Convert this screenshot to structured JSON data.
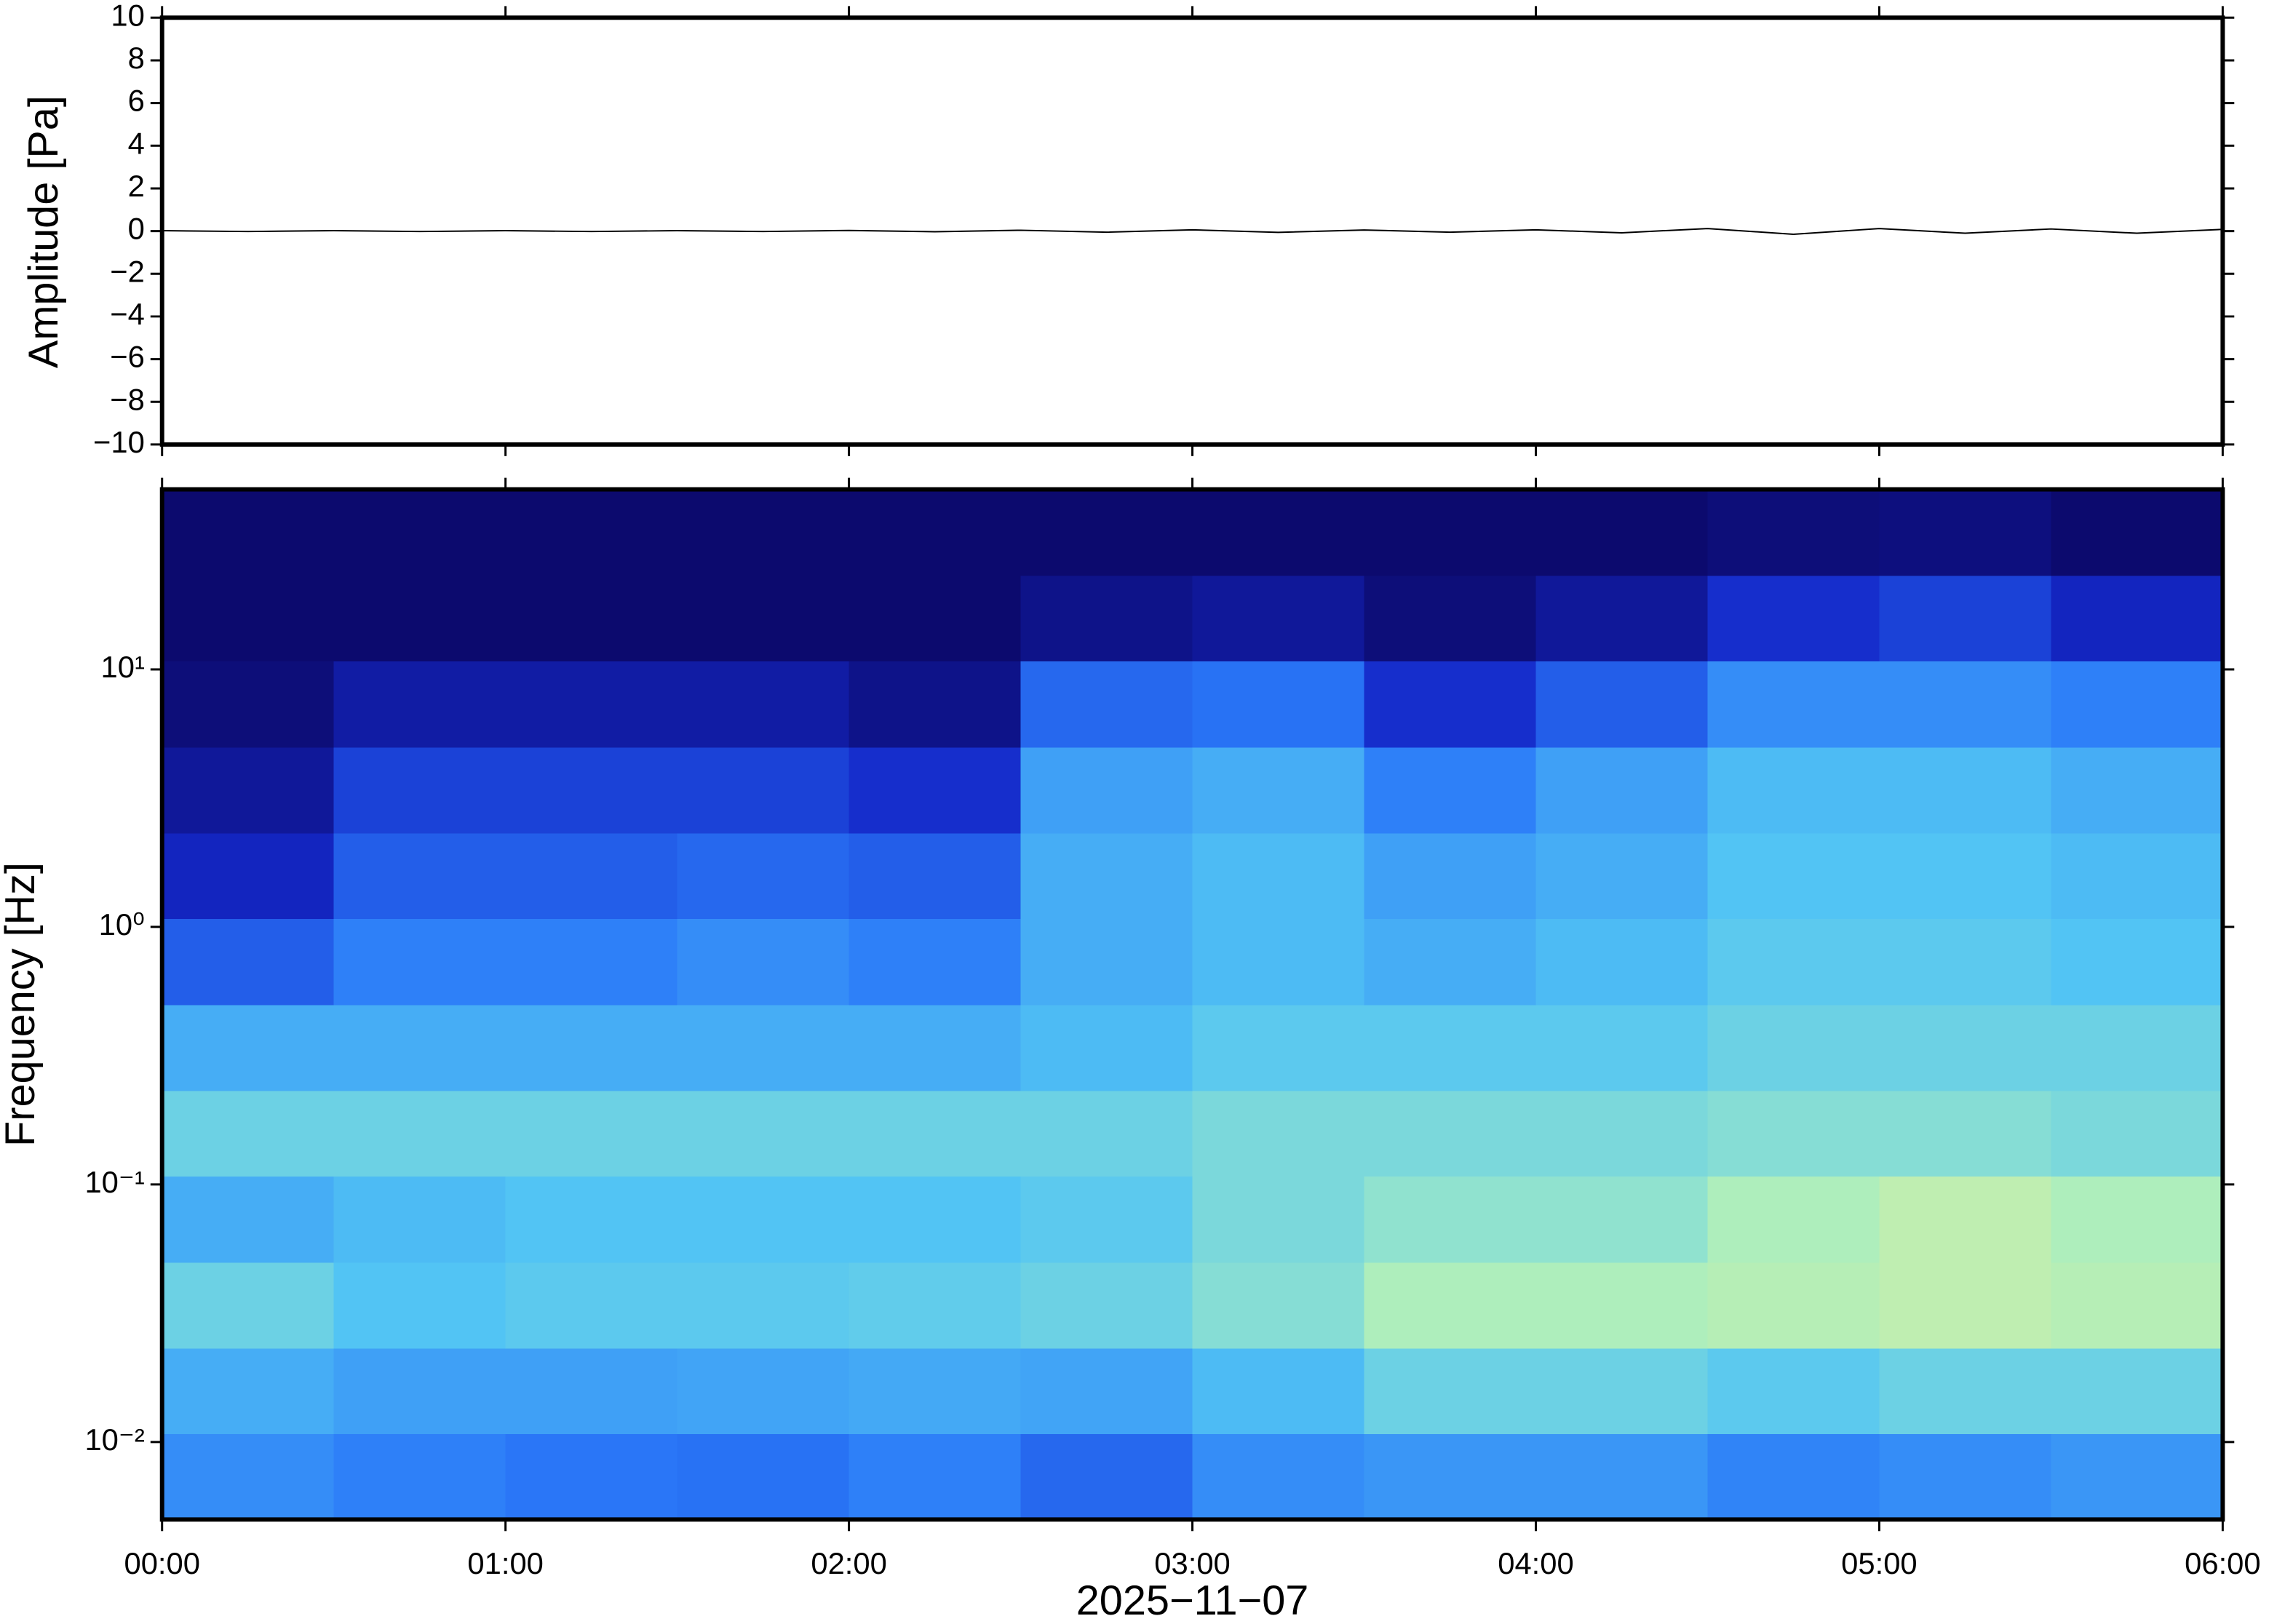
{
  "chart_data": [
    {
      "type": "line",
      "ylabel": "Amplitude [Pa]",
      "xlim": [
        0,
        6
      ],
      "ylim": [
        -10,
        10
      ],
      "yticks": [
        {
          "value": -10,
          "label": "−10"
        },
        {
          "value": -8,
          "label": "−8"
        },
        {
          "value": -6,
          "label": "−6"
        },
        {
          "value": -4,
          "label": "−4"
        },
        {
          "value": -2,
          "label": "−2"
        },
        0,
        2,
        4,
        6,
        8,
        10
      ],
      "color": "#000000",
      "x": [
        0,
        0.25,
        0.5,
        0.75,
        1,
        1.25,
        1.5,
        1.75,
        2,
        2.25,
        2.5,
        2.75,
        3,
        3.25,
        3.5,
        3.75,
        4,
        4.25,
        4.5,
        4.75,
        5,
        5.25,
        5.5,
        5.75,
        6
      ],
      "values": [
        0.02,
        -0.02,
        0.02,
        -0.02,
        0.02,
        -0.02,
        0.02,
        -0.02,
        0.03,
        -0.03,
        0.04,
        -0.05,
        0.06,
        -0.06,
        0.05,
        -0.05,
        0.06,
        -0.08,
        0.12,
        -0.15,
        0.12,
        -0.1,
        0.1,
        -0.1,
        0.08
      ]
    },
    {
      "type": "heatmap",
      "ylabel": "Frequency [Hz]",
      "xlabel": "2025−11−07",
      "xlim": [
        0,
        6
      ],
      "xticks": [
        {
          "value": 0,
          "label": "00:00"
        },
        {
          "value": 1,
          "label": "01:00"
        },
        {
          "value": 2,
          "label": "02:00"
        },
        {
          "value": 3,
          "label": "03:00"
        },
        {
          "value": 4,
          "label": "04:00"
        },
        {
          "value": 5,
          "label": "05:00"
        },
        {
          "value": 6,
          "label": "06:00"
        }
      ],
      "ylim": [
        0.005,
        50
      ],
      "log_y": true,
      "yticks": [
        {
          "value": 0.01,
          "label": "10⁻²"
        },
        {
          "value": 0.1,
          "label": "10⁻¹"
        },
        {
          "value": 1,
          "label": "10⁰"
        },
        {
          "value": 10,
          "label": "10¹"
        }
      ],
      "x_bins": [
        0,
        0.5,
        1,
        1.5,
        2,
        2.5,
        3,
        3.5,
        4,
        4.5,
        5,
        5.5,
        6
      ],
      "y_bins": [
        0.005,
        0.0108,
        0.0232,
        0.05,
        0.108,
        0.232,
        0.5,
        1.08,
        2.32,
        5,
        10.8,
        23.2,
        50
      ],
      "clim": [
        0,
        1
      ],
      "colormap": [
        "#0c0a6e",
        "#1428c8",
        "#2a78f8",
        "#52c4f4",
        "#a8eec0",
        "#f0ee90",
        "#f0a050"
      ],
      "values": [
        [
          0.38,
          0.35,
          0.33,
          0.32,
          0.35,
          0.3,
          0.38,
          0.4,
          0.4,
          0.36,
          0.38,
          0.4
        ],
        [
          0.45,
          0.42,
          0.42,
          0.43,
          0.44,
          0.43,
          0.48,
          0.55,
          0.55,
          0.52,
          0.55,
          0.55
        ],
        [
          0.55,
          0.5,
          0.52,
          0.52,
          0.53,
          0.55,
          0.6,
          0.68,
          0.68,
          0.7,
          0.72,
          0.7
        ],
        [
          0.45,
          0.48,
          0.5,
          0.5,
          0.5,
          0.52,
          0.58,
          0.62,
          0.62,
          0.68,
          0.72,
          0.68
        ],
        [
          0.55,
          0.55,
          0.55,
          0.55,
          0.55,
          0.55,
          0.58,
          0.58,
          0.58,
          0.6,
          0.6,
          0.58
        ],
        [
          0.45,
          0.45,
          0.45,
          0.45,
          0.45,
          0.48,
          0.52,
          0.52,
          0.52,
          0.55,
          0.55,
          0.55
        ],
        [
          0.28,
          0.35,
          0.35,
          0.38,
          0.35,
          0.45,
          0.48,
          0.45,
          0.48,
          0.52,
          0.52,
          0.5
        ],
        [
          0.15,
          0.28,
          0.28,
          0.3,
          0.28,
          0.45,
          0.48,
          0.42,
          0.45,
          0.5,
          0.5,
          0.48
        ],
        [
          0.08,
          0.22,
          0.22,
          0.22,
          0.18,
          0.42,
          0.45,
          0.35,
          0.42,
          0.48,
          0.48,
          0.45
        ],
        [
          0.02,
          0.1,
          0.1,
          0.1,
          0.05,
          0.3,
          0.32,
          0.18,
          0.28,
          0.38,
          0.38,
          0.35
        ],
        [
          0,
          0,
          0,
          0,
          0,
          0.05,
          0.08,
          0.02,
          0.08,
          0.18,
          0.22,
          0.15
        ],
        [
          0,
          0,
          0,
          0,
          0,
          0,
          0,
          0,
          0,
          0.02,
          0.03,
          0
        ]
      ]
    }
  ]
}
